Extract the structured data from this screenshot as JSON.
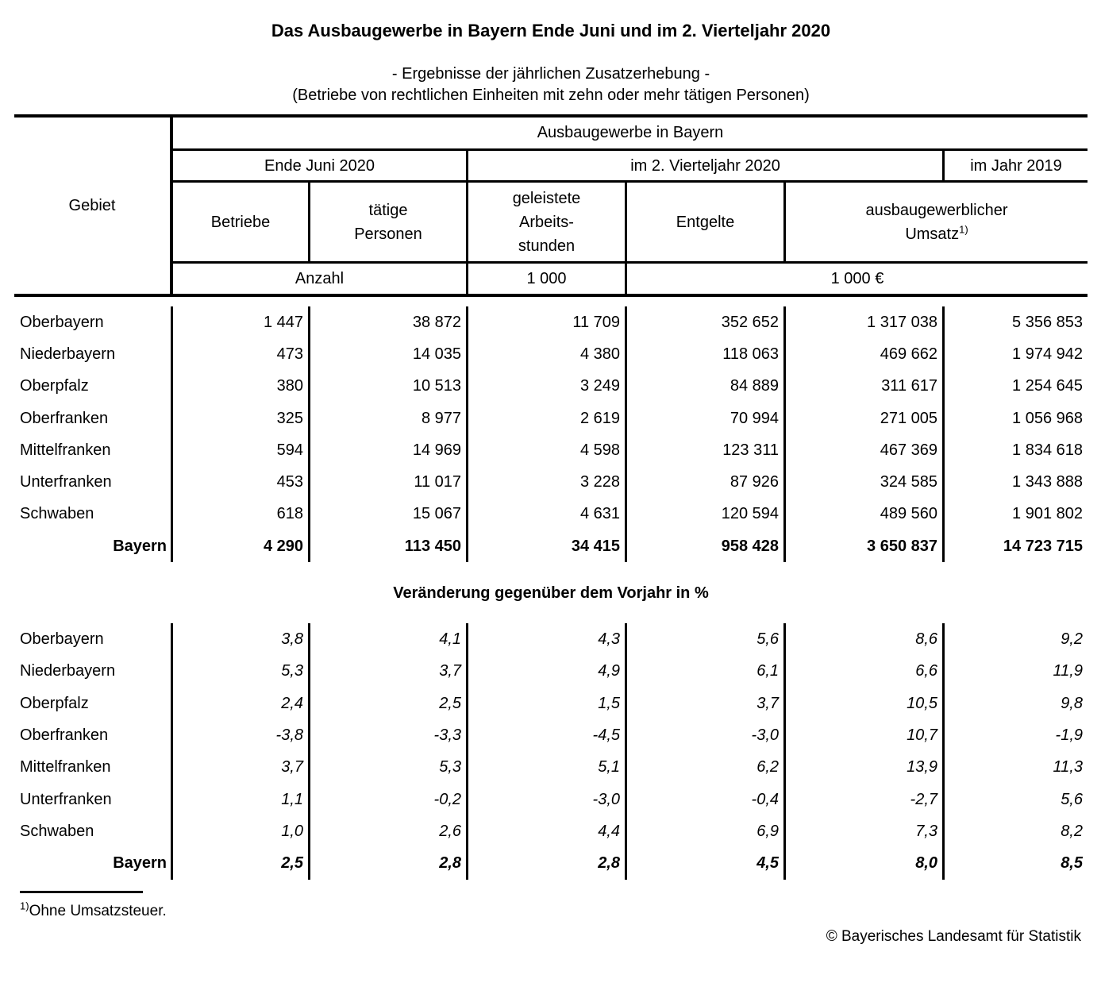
{
  "title": "Das Ausbaugewerbe in Bayern Ende Juni und im 2. Vierteljahr 2020",
  "subtitle1": "- Ergebnisse der jährlichen Zusatzerhebung -",
  "subtitle2": "(Betriebe von rechtlichen Einheiten mit zehn oder mehr tätigen Personen)",
  "table": {
    "corner_label": "Gebiet",
    "group_header": "Ausbaugewerbe in Bayern",
    "period_headers": [
      "Ende Juni 2020",
      "im 2. Vierteljahr 2020",
      "im Jahr 2019"
    ],
    "col_headers": [
      {
        "lines": [
          "Betriebe"
        ]
      },
      {
        "lines": [
          "tätige",
          "Personen"
        ]
      },
      {
        "lines": [
          "geleistete",
          "Arbeits-",
          "stunden"
        ]
      },
      {
        "lines": [
          "Entgelte"
        ]
      },
      {
        "lines": [
          "ausbaugewerblicher",
          "Umsatz"
        ]
      }
    ],
    "umsatz_footnote_marker": "1)",
    "unit_headers": [
      "Anzahl",
      "1 000",
      "1 000 €"
    ]
  },
  "absolute_section": {
    "rows": [
      {
        "label": "Oberbayern",
        "values": [
          "1 447",
          "38 872",
          "11 709",
          "352 652",
          "1 317 038",
          "5 356 853"
        ]
      },
      {
        "label": "Niederbayern",
        "values": [
          "473",
          "14 035",
          "4 380",
          "118 063",
          "469 662",
          "1 974 942"
        ]
      },
      {
        "label": "Oberpfalz",
        "values": [
          "380",
          "10 513",
          "3 249",
          "84 889",
          "311 617",
          "1 254 645"
        ]
      },
      {
        "label": "Oberfranken",
        "values": [
          "325",
          "8 977",
          "2 619",
          "70 994",
          "271 005",
          "1 056 968"
        ]
      },
      {
        "label": "Mittelfranken",
        "values": [
          "594",
          "14 969",
          "4 598",
          "123 311",
          "467 369",
          "1 834 618"
        ]
      },
      {
        "label": "Unterfranken",
        "values": [
          "453",
          "11 017",
          "3 228",
          "87 926",
          "324 585",
          "1 343 888"
        ]
      },
      {
        "label": "Schwaben",
        "values": [
          "618",
          "15 067",
          "4 631",
          "120 594",
          "489 560",
          "1 901 802"
        ]
      },
      {
        "label": "Bayern",
        "values": [
          "4 290",
          "113 450",
          "34 415",
          "958 428",
          "3 650 837",
          "14 723 715"
        ]
      }
    ]
  },
  "change_section": {
    "title": "Veränderung gegenüber dem Vorjahr in %",
    "rows": [
      {
        "label": "Oberbayern",
        "values": [
          "3,8",
          "4,1",
          "4,3",
          "5,6",
          "8,6",
          "9,2"
        ]
      },
      {
        "label": "Niederbayern",
        "values": [
          "5,3",
          "3,7",
          "4,9",
          "6,1",
          "6,6",
          "11,9"
        ]
      },
      {
        "label": "Oberpfalz",
        "values": [
          "2,4",
          "2,5",
          "1,5",
          "3,7",
          "10,5",
          "9,8"
        ]
      },
      {
        "label": "Oberfranken",
        "values": [
          "-3,8",
          "-3,3",
          "-4,5",
          "-3,0",
          "10,7",
          "-1,9"
        ]
      },
      {
        "label": "Mittelfranken",
        "values": [
          "3,7",
          "5,3",
          "5,1",
          "6,2",
          "13,9",
          "11,3"
        ]
      },
      {
        "label": "Unterfranken",
        "values": [
          "1,1",
          "-0,2",
          "-3,0",
          "-0,4",
          "-2,7",
          "5,6"
        ]
      },
      {
        "label": "Schwaben",
        "values": [
          "1,0",
          "2,6",
          "4,4",
          "6,9",
          "7,3",
          "8,2"
        ]
      },
      {
        "label": "Bayern",
        "values": [
          "2,5",
          "2,8",
          "2,8",
          "4,5",
          "8,0",
          "8,5"
        ]
      }
    ]
  },
  "footnote": {
    "marker": "1)",
    "text": "Ohne Umsatzsteuer."
  },
  "copyright": "© Bayerisches Landesamt für Statistik"
}
